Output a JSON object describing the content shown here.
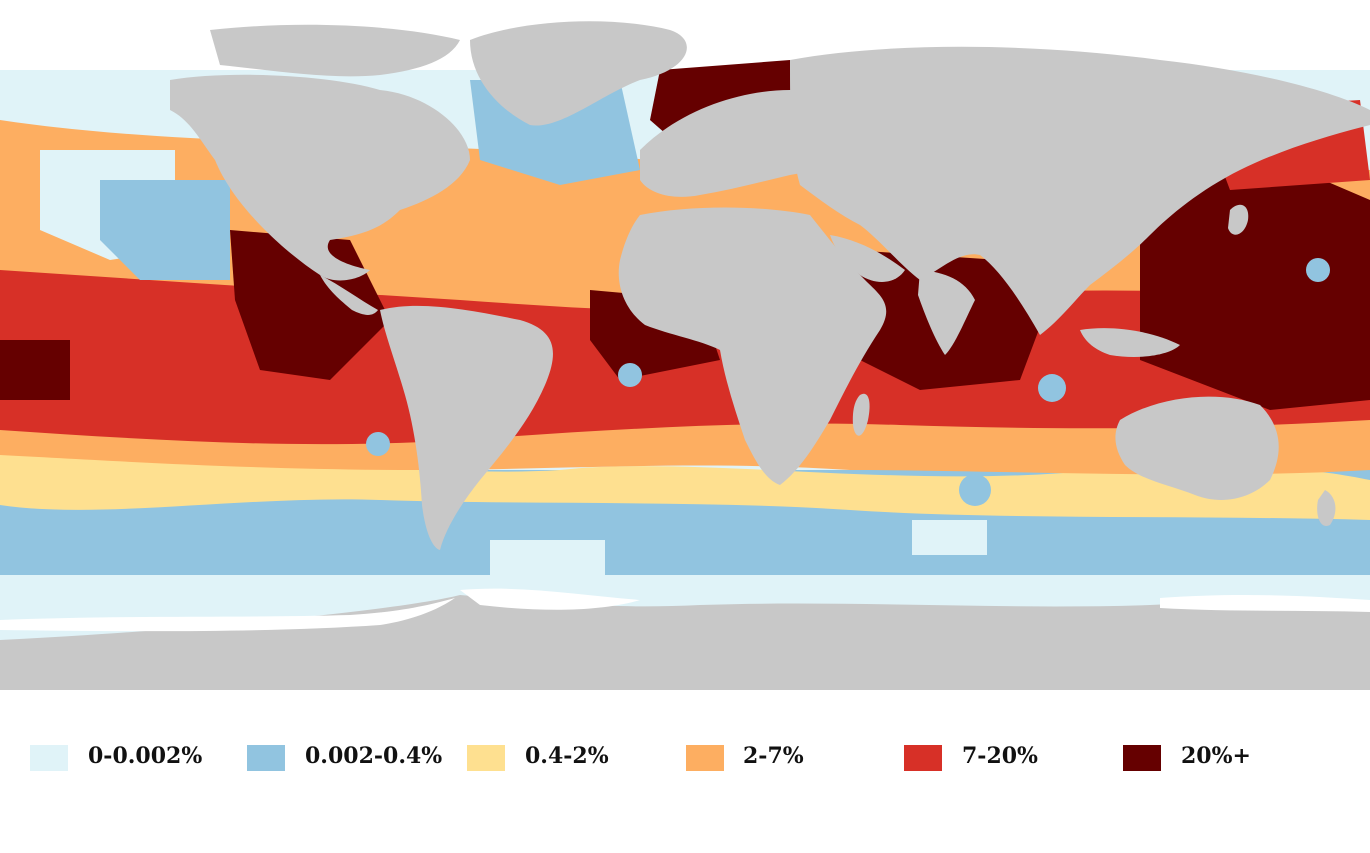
{
  "map": {
    "land_color": "#c8c8c8",
    "antarctic_ice_color": "#ffffff"
  },
  "legend": {
    "items": [
      {
        "label": "0-0.002%",
        "color": "#e0f3f8"
      },
      {
        "label": "0.002-0.4%",
        "color": "#91c4e0"
      },
      {
        "label": "0.4-2%",
        "color": "#fee090"
      },
      {
        "label": "2-7%",
        "color": "#fdae61"
      },
      {
        "label": "7-20%",
        "color": "#d73027"
      },
      {
        "label": "20%+",
        "color": "#650000"
      }
    ]
  }
}
